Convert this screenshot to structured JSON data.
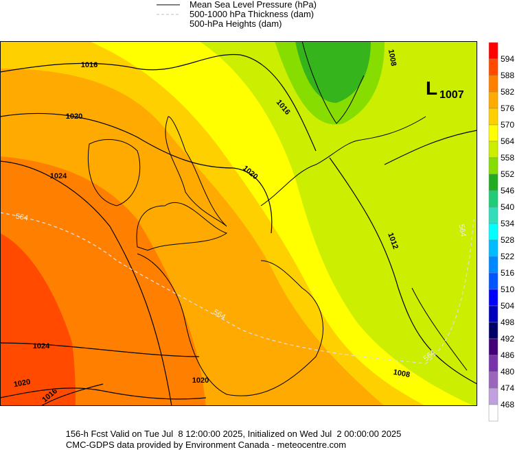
{
  "legend": {
    "items": [
      "Mean Sea Level Pressure (hPa)",
      "500-1000 hPa Thickness (dam)",
      "500-hPa Heights (dam)"
    ]
  },
  "colorbar": {
    "labels": [
      594,
      588,
      582,
      576,
      570,
      564,
      558,
      552,
      546,
      540,
      534,
      528,
      522,
      516,
      510,
      504,
      498,
      492,
      486,
      480,
      474,
      468
    ],
    "colors": [
      "#ff0000",
      "#ff4a00",
      "#ff8000",
      "#ffaa00",
      "#ffd000",
      "#ffff00",
      "#ccee00",
      "#88dd00",
      "#22aa22",
      "#22cc77",
      "#33ddbb",
      "#00ffff",
      "#00bbff",
      "#0088ff",
      "#0055ff",
      "#0000ff",
      "#0000bb",
      "#000066",
      "#440077",
      "#7733aa",
      "#9966bb",
      "#c0a0dd",
      "#ffffff"
    ]
  },
  "map": {
    "pressure_labels": [
      "1016",
      "1020",
      "1024",
      "1016",
      "1020",
      "1012",
      "1008",
      "1008",
      "1024",
      "1020",
      "1016",
      "1020"
    ],
    "thickness_labels": [
      "564",
      "564",
      "564",
      "564"
    ],
    "low": {
      "letter": "L",
      "value": "1007"
    }
  },
  "footer": {
    "lines": [
      "156-h Fcst Valid on Tue Jul  8 12:00:00 2025, Initialized on Wed Jul  2 00:00:00 2025",
      "CMC-GDPS data provided by Environment Canada - meteocentre.com"
    ]
  }
}
